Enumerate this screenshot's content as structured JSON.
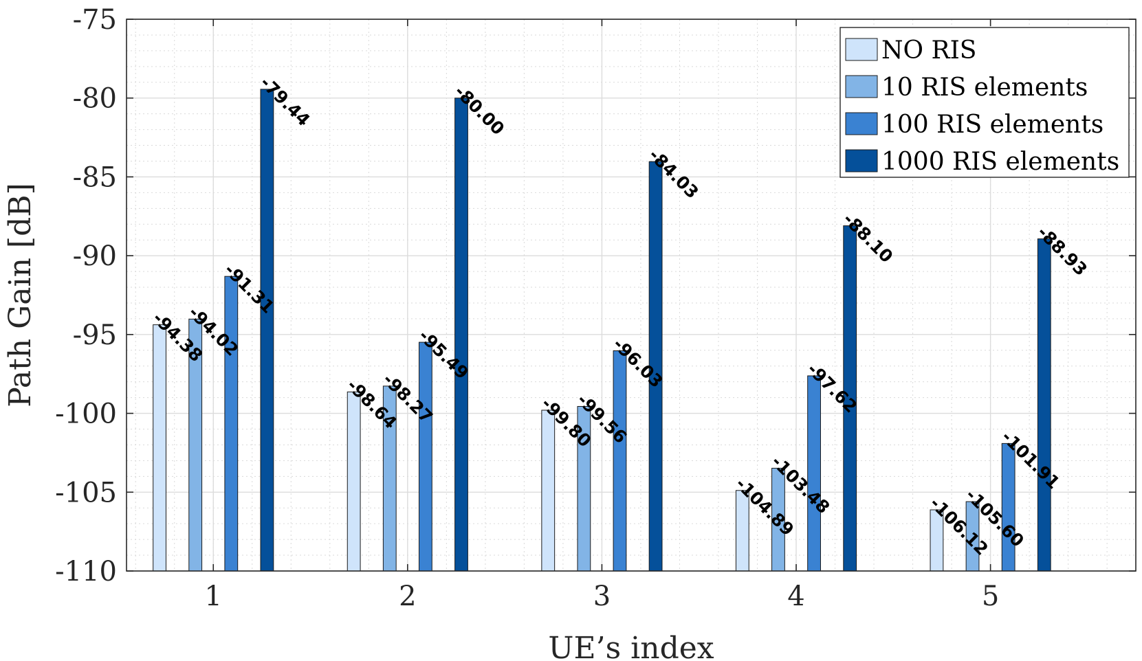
{
  "chart_data": {
    "type": "bar",
    "categories": [
      "1",
      "2",
      "3",
      "4",
      "5"
    ],
    "series": [
      {
        "name": "NO RIS",
        "color": "#cfe4fb",
        "values": [
          -94.38,
          -98.64,
          -99.8,
          -104.89,
          -106.12
        ]
      },
      {
        "name": "10 RIS elements",
        "color": "#82b4e6",
        "values": [
          -94.02,
          -98.27,
          -99.56,
          -103.48,
          -105.6
        ]
      },
      {
        "name": "100 RIS elements",
        "color": "#3a82d2",
        "values": [
          -91.31,
          -95.49,
          -96.03,
          -97.62,
          -101.91
        ]
      },
      {
        "name": "1000 RIS elements",
        "color": "#05509a",
        "values": [
          -79.44,
          -80.0,
          -84.03,
          -88.1,
          -88.93
        ]
      }
    ],
    "data_labels": [
      [
        "-94.38",
        "-98.64",
        "-99.80",
        "-104.89",
        "-106.12"
      ],
      [
        "-94.02",
        "-98.27",
        "-99.56",
        "-103.48",
        "-105.60"
      ],
      [
        "-91.31",
        "-95.49",
        "-96.03",
        "-97.62",
        "-101.91"
      ],
      [
        "-79.44",
        "-80.00",
        "-84.03",
        "-88.10",
        "-88.93"
      ]
    ],
    "xlabel": "UE’s index",
    "ylabel": "Path Gain [dB]",
    "ylim": [
      -110,
      -75
    ],
    "yticks": [
      -75,
      -80,
      -85,
      -90,
      -95,
      -100,
      -105,
      -110
    ],
    "ytick_labels": [
      "-75",
      "-80",
      "-85",
      "-90",
      "-95",
      "-100",
      "-105",
      "-110"
    ],
    "grid": true,
    "minor_grid": true,
    "legend_position": "top-right"
  }
}
